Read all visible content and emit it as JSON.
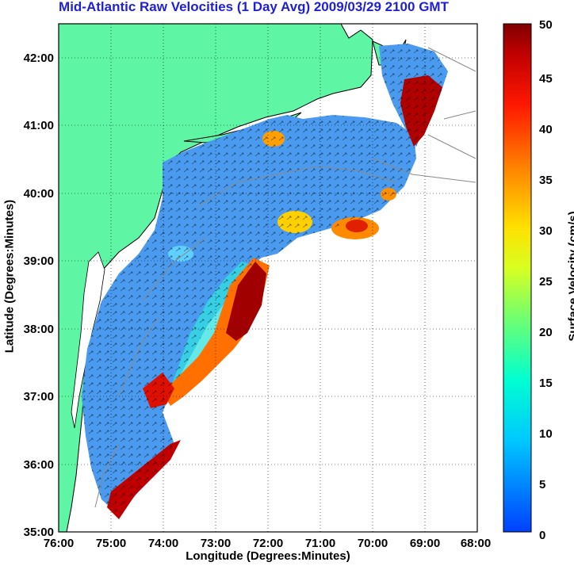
{
  "title": "Mid-Atlantic Raw Velocities (1 Day Avg) 2009/03/29 2100 GMT",
  "map": {
    "xlabel": "Longitude (Degrees:Minutes)",
    "ylabel": "Latitude (Degrees:Minutes)",
    "x_ticks": [
      "76:00",
      "75:00",
      "74:00",
      "73:00",
      "72:00",
      "71:00",
      "70:00",
      "69:00",
      "68:00"
    ],
    "y_ticks": [
      "35:00",
      "36:00",
      "37:00",
      "38:00",
      "39:00",
      "40:00",
      "41:00",
      "42:00"
    ],
    "land_color": "#5ef5a5",
    "grid": "dotted"
  },
  "colorbar": {
    "label": "Surface Velocity (cm/s)",
    "ticks": [
      "0",
      "5",
      "10",
      "15",
      "20",
      "25",
      "30",
      "35",
      "40",
      "45",
      "50"
    ],
    "min": 0,
    "max": 50
  }
}
